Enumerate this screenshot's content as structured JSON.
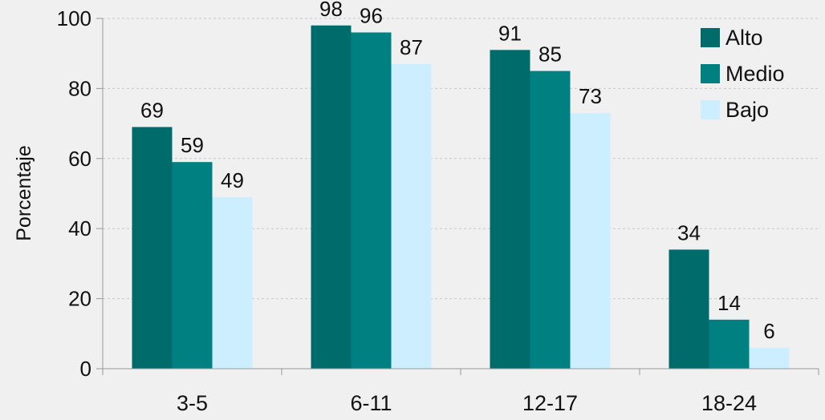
{
  "chart_data": {
    "type": "bar",
    "categories": [
      "3-5",
      "6-11",
      "12-17",
      "18-24"
    ],
    "series": [
      {
        "name": "Alto",
        "color": "#006b6b",
        "values": [
          69,
          98,
          91,
          34
        ]
      },
      {
        "name": "Medio",
        "color": "#008080",
        "values": [
          59,
          96,
          85,
          14
        ]
      },
      {
        "name": "Bajo",
        "color": "#cceeff",
        "values": [
          49,
          87,
          73,
          6
        ]
      }
    ],
    "data_labels": [
      [
        "69",
        "98",
        "91",
        "34"
      ],
      [
        "59",
        "96",
        "85",
        "14"
      ],
      [
        "49",
        "87",
        "73",
        "6"
      ]
    ],
    "ylabel": "Porcentaje",
    "xlabel": "",
    "title": "",
    "ylim": [
      0,
      100
    ],
    "yticks": [
      "0",
      "20",
      "40",
      "60",
      "80",
      "100"
    ],
    "grid": true,
    "legend": "top-right",
    "colors": {
      "background": "#f0f0f0",
      "axis": "#999999",
      "grid": "#c8c8c8"
    }
  }
}
